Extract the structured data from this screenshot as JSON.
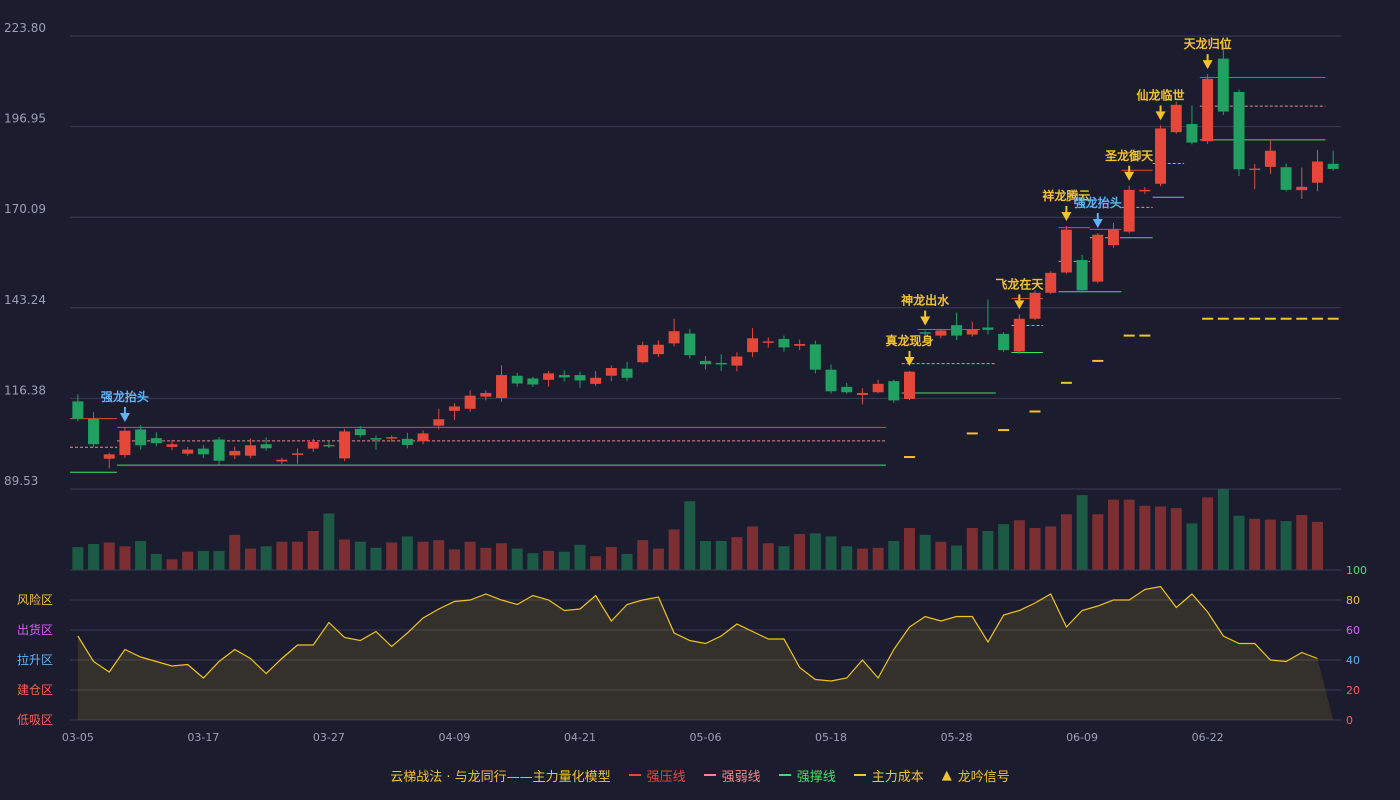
{
  "colors": {
    "up": "#e5473b",
    "down": "#21a062",
    "upVol": "#7c2f33",
    "downVol": "#1d5a45",
    "resist": "#e5473b",
    "weak": "#ee8a8a",
    "support": "#3fe06a",
    "cost": "#f2c230",
    "signal": "#f2c230",
    "signal_alt": "#5db4f7",
    "osc": "#f0c419",
    "grid": "#3a3d55",
    "axis": "#9aa0b5"
  },
  "legend": {
    "title": "云梯战法 · 与龙同行——主力量化模型",
    "resist": "强压线",
    "weak": "强弱线",
    "support": "强撑线",
    "cost": "主力成本",
    "signal": "龙吟信号"
  },
  "chart_data": {
    "type": "candlestick",
    "y_ticks": [
      "223.80",
      "196.95",
      "170.09",
      "143.24",
      "116.38",
      "89.53"
    ],
    "ylim": [
      89.53,
      223.8
    ],
    "x_ticks": [
      {
        "i": 0,
        "label": "03-05"
      },
      {
        "i": 8,
        "label": "03-17"
      },
      {
        "i": 16,
        "label": "03-27"
      },
      {
        "i": 24,
        "label": "04-09"
      },
      {
        "i": 32,
        "label": "04-21"
      },
      {
        "i": 40,
        "label": "05-06"
      },
      {
        "i": 48,
        "label": "05-18"
      },
      {
        "i": 56,
        "label": "05-28"
      },
      {
        "i": 64,
        "label": "06-09"
      },
      {
        "i": 72,
        "label": "06-22"
      }
    ],
    "candles": [
      [
        115.5,
        110.3,
        117.6,
        109.6
      ],
      [
        110.3,
        102.8,
        112.4,
        101.9
      ],
      [
        98.5,
        99.8,
        100.3,
        95.6
      ],
      [
        99.6,
        106.8,
        107.9,
        98.8
      ],
      [
        107.2,
        102.5,
        108.4,
        101.2
      ],
      [
        104.6,
        103.1,
        106.3,
        102.2
      ],
      [
        102.0,
        102.8,
        104.1,
        101.0
      ],
      [
        100.0,
        101.2,
        102.0,
        99.4
      ],
      [
        101.5,
        99.8,
        102.5,
        98.7
      ],
      [
        104.2,
        97.9,
        104.9,
        96.8
      ],
      [
        99.5,
        100.8,
        102.1,
        98.4
      ],
      [
        99.4,
        102.5,
        104.5,
        98.6
      ],
      [
        102.8,
        101.6,
        104.8,
        100.9
      ],
      [
        97.7,
        98.2,
        98.8,
        96.9
      ],
      [
        99.8,
        100.1,
        101.6,
        97.0
      ],
      [
        101.5,
        103.5,
        104.4,
        100.5
      ],
      [
        102.6,
        102.4,
        103.6,
        101.7
      ],
      [
        98.6,
        106.6,
        107.4,
        97.8
      ],
      [
        107.3,
        105.5,
        108.2,
        104.8
      ],
      [
        104.6,
        104.2,
        105.4,
        101.2
      ],
      [
        104.6,
        104.9,
        105.4,
        103.5
      ],
      [
        104.4,
        102.6,
        106.2,
        101.6
      ],
      [
        103.7,
        106.0,
        106.9,
        102.8
      ],
      [
        108.3,
        110.2,
        113.3,
        107.2
      ],
      [
        112.7,
        114.0,
        115.0,
        110.0
      ],
      [
        113.3,
        117.2,
        118.8,
        112.4
      ],
      [
        116.9,
        118.0,
        118.8,
        115.8
      ],
      [
        116.5,
        123.3,
        126.2,
        115.4
      ],
      [
        123.1,
        120.8,
        124.0,
        119.9
      ],
      [
        122.3,
        120.5,
        122.8,
        119.8
      ],
      [
        121.9,
        123.8,
        124.5,
        119.9
      ],
      [
        123.3,
        122.6,
        124.7,
        121.4
      ],
      [
        123.3,
        121.7,
        124.3,
        119.5
      ],
      [
        120.7,
        122.5,
        124.5,
        120.1
      ],
      [
        123.1,
        125.4,
        126.2,
        121.5
      ],
      [
        125.2,
        122.5,
        127.2,
        121.6
      ],
      [
        127.1,
        132.2,
        133.2,
        126.8
      ],
      [
        129.5,
        132.3,
        133.6,
        128.7
      ],
      [
        132.7,
        136.3,
        140.0,
        131.8
      ],
      [
        135.6,
        129.2,
        137.0,
        128.2
      ],
      [
        127.5,
        126.5,
        128.9,
        124.9
      ],
      [
        126.9,
        126.8,
        129.5,
        124.5
      ],
      [
        126.1,
        128.8,
        130.0,
        124.4
      ],
      [
        130.1,
        134.2,
        137.2,
        128.6
      ],
      [
        132.9,
        133.3,
        134.5,
        131.4
      ],
      [
        134.0,
        131.5,
        135.0,
        130.2
      ],
      [
        132.0,
        132.5,
        133.8,
        130.7
      ],
      [
        132.4,
        124.9,
        133.5,
        123.8
      ],
      [
        124.9,
        118.5,
        126.4,
        117.8
      ],
      [
        119.8,
        118.2,
        121.0,
        117.8
      ],
      [
        117.4,
        118.0,
        119.4,
        114.6
      ],
      [
        118.2,
        120.7,
        121.9,
        117.9
      ],
      [
        121.5,
        115.8,
        121.9,
        115.1
      ],
      [
        116.2,
        124.3,
        124.5,
        115.9
      ],
      [
        136.0,
        135.7,
        136.5,
        134.5
      ],
      [
        135.0,
        136.5,
        137.0,
        134.2
      ],
      [
        138.1,
        135.0,
        141.8,
        133.7
      ],
      [
        135.3,
        136.7,
        139.1,
        134.7
      ],
      [
        137.4,
        136.7,
        145.7,
        135.3
      ],
      [
        135.5,
        130.7,
        136.0,
        130.2
      ],
      [
        130.3,
        140.0,
        141.3,
        129.6
      ],
      [
        140.0,
        147.7,
        148.3,
        139.6
      ],
      [
        147.7,
        153.6,
        154.1,
        147.3
      ],
      [
        153.7,
        166.4,
        167.5,
        153.3
      ],
      [
        157.4,
        148.4,
        158.9,
        147.7
      ],
      [
        151.0,
        164.9,
        165.4,
        150.5
      ],
      [
        161.8,
        166.4,
        168.4,
        161.0
      ],
      [
        165.8,
        178.2,
        179.4,
        165.3
      ],
      [
        178.0,
        178.2,
        179.0,
        177.0
      ],
      [
        180.0,
        196.4,
        197.3,
        179.3
      ],
      [
        195.3,
        203.4,
        204.3,
        194.8
      ],
      [
        197.7,
        192.2,
        203.2,
        191.7
      ],
      [
        192.6,
        211.1,
        212.5,
        191.8
      ],
      [
        217.1,
        201.4,
        222.1,
        200.4
      ],
      [
        207.2,
        184.3,
        207.9,
        182.3
      ],
      [
        184.2,
        184.5,
        185.9,
        178.4
      ],
      [
        185.0,
        189.8,
        193.1,
        182.9
      ],
      [
        184.9,
        178.2,
        186.0,
        177.7
      ],
      [
        178.1,
        179.1,
        184.8,
        175.5
      ],
      [
        180.3,
        186.6,
        190.0,
        177.8
      ],
      [
        185.9,
        184.4,
        189.8,
        183.9
      ]
    ],
    "volume": [
      30,
      34,
      36,
      31,
      38,
      21,
      14,
      24,
      25,
      25,
      46,
      28,
      31,
      37,
      37,
      51,
      74,
      40,
      37,
      29,
      36,
      44,
      37,
      39,
      27,
      37,
      29,
      35,
      28,
      22,
      25,
      24,
      33,
      18,
      30,
      21,
      39,
      28,
      53,
      90,
      38,
      38,
      43,
      57,
      35,
      31,
      47,
      48,
      44,
      31,
      28,
      29,
      38,
      55,
      46,
      37,
      32,
      55,
      51,
      60,
      65,
      55,
      57,
      73,
      98,
      73,
      92,
      92,
      84,
      83,
      81,
      61,
      95,
      106,
      71,
      67,
      66,
      64,
      72,
      63
    ],
    "oscillator": [
      56,
      39,
      32,
      47,
      42,
      39,
      36,
      37,
      28,
      39,
      47,
      41,
      31,
      41,
      50,
      50,
      65,
      55,
      53,
      59,
      49,
      58,
      68,
      74,
      79,
      80,
      84,
      80,
      77,
      83,
      80,
      73,
      74,
      83,
      66,
      77,
      80,
      82,
      58,
      53,
      51,
      56,
      64,
      59,
      54,
      54,
      35,
      27,
      26,
      28,
      40,
      28,
      47,
      62,
      69,
      66,
      69,
      69,
      52,
      70,
      73,
      78,
      84,
      62,
      73,
      76,
      80,
      80,
      87,
      89,
      75,
      84,
      72,
      56,
      51,
      51,
      40,
      39,
      45,
      41
    ],
    "signals": [
      {
        "i": 3,
        "label": "强龙抬头",
        "alt": true
      },
      {
        "i": 53,
        "label": "真龙现身",
        "alt": false
      },
      {
        "i": 54,
        "label": "神龙出水",
        "alt": false
      },
      {
        "i": 60,
        "label": "飞龙在天",
        "alt": false
      },
      {
        "i": 63,
        "label": "祥龙腾云",
        "alt": false
      },
      {
        "i": 65,
        "label": "强龙抬头",
        "alt": true
      },
      {
        "i": 67,
        "label": "圣龙御天",
        "alt": false
      },
      {
        "i": 69,
        "label": "仙龙临世",
        "alt": false
      },
      {
        "i": 72,
        "label": "天龙归位",
        "alt": false
      }
    ],
    "zones": [
      "风险区",
      "出货区",
      "拉升区",
      "建仓区",
      "低吸区"
    ],
    "zone_colors": [
      "#f2c230",
      "#e056fd",
      "#5db4f7",
      "#ff5a5a",
      "#ff5a5a"
    ],
    "osc_ticks": [
      "100",
      "80",
      "60",
      "40",
      "20",
      "0"
    ],
    "osc_tick_colors": [
      "#3fe06a",
      "#f2c230",
      "#e056fd",
      "#5db4f7",
      "#ff5a5a",
      "#ff5a5a"
    ]
  }
}
